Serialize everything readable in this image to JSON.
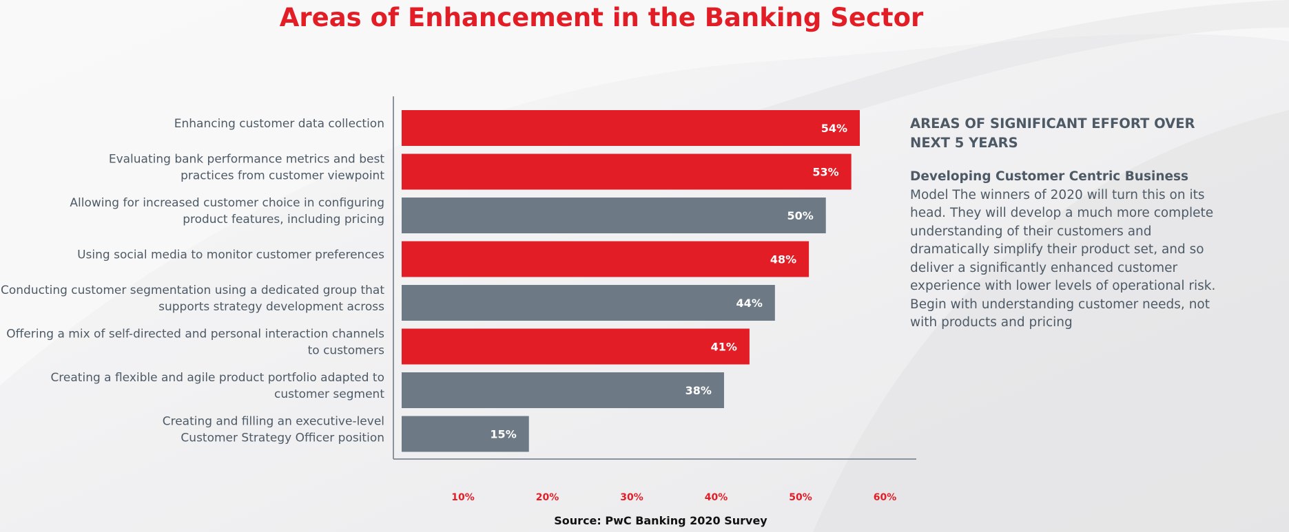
{
  "title": "Areas of Enhancement in the Banking Sector",
  "colors": {
    "red": "#e31d26",
    "gray": "#6d7a85",
    "tick": "#e31d26",
    "text": "#4d5a66"
  },
  "chart_data": {
    "type": "bar",
    "orientation": "horizontal",
    "categories": [
      [
        "Enhancing customer data collection"
      ],
      [
        "Evaluating bank performance metrics and best",
        "practices from customer viewpoint"
      ],
      [
        "Allowing for increased customer choice in configuring",
        "product features, including pricing"
      ],
      [
        "Using social media to monitor customer preferences"
      ],
      [
        "Conducting customer segmentation using a dedicated group that",
        "supports strategy development across"
      ],
      [
        "Offering a mix of self-directed and personal interaction channels",
        "to customers"
      ],
      [
        "Creating a flexible and agile product portfolio adapted to",
        "customer segment"
      ],
      [
        "Creating and filling an executive-level",
        "Customer Strategy Officer position"
      ]
    ],
    "values": [
      54,
      53,
      50,
      48,
      44,
      41,
      38,
      15
    ],
    "value_labels": [
      "54%",
      "53%",
      "50%",
      "48%",
      "44%",
      "41%",
      "38%",
      "15%"
    ],
    "bar_colors": [
      "red",
      "red",
      "gray",
      "red",
      "gray",
      "red",
      "gray",
      "gray"
    ],
    "x_ticks": [
      10,
      20,
      30,
      40,
      50,
      60
    ],
    "x_tick_labels": [
      "10%",
      "20%",
      "30%",
      "40%",
      "50%",
      "60%"
    ],
    "xlim": [
      0,
      60
    ],
    "grid": false,
    "legend": "none"
  },
  "panel": {
    "heading": "AREAS OF SIGNIFICANT EFFORT OVER NEXT 5 YEARS",
    "lead": "Developing Customer Centric Business",
    "body": " Model The winners of 2020 will turn this on its head. They will develop a much more complete understanding of their customers and dramatically simplify their product set, and so deliver a significantly enhanced customer experience with lower levels of operational risk. Begin with understanding customer needs, not with products and pricing"
  },
  "source": "Source: PwC Banking 2020 Survey"
}
